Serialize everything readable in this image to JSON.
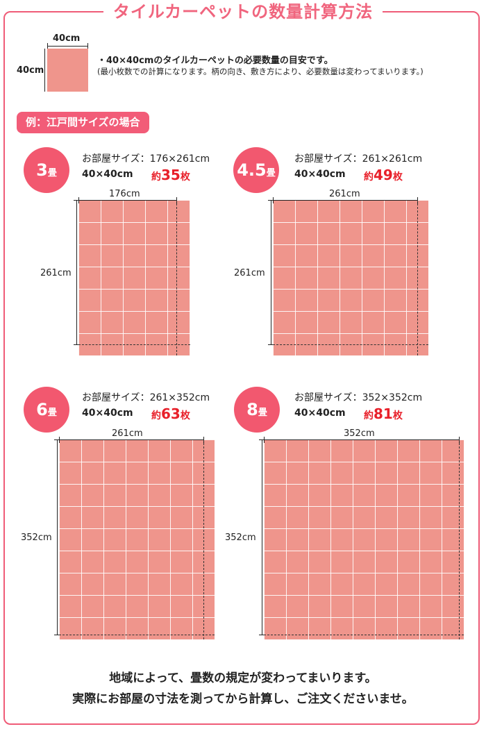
{
  "title": "タイルカーペットの数量計算方法",
  "swatch": {
    "width_label": "40cm",
    "height_label": "40cm"
  },
  "notes": {
    "line1": "・40×40cmのタイルカーペットの必要数量の目安です。",
    "line2": "(最小枚数での計算になります。柄の向き、敷き方により、必要数量は変わってまいります。)"
  },
  "example_label": "例：江戸間サイズの場合",
  "rooms": [
    {
      "num": "3",
      "unit": "畳",
      "room_size": "お部屋サイズ：176×261cm",
      "tile": "40×40cm",
      "approx": "約",
      "count": "35",
      "count_unit": "枚",
      "width_label": "176cm",
      "height_label": "261cm"
    },
    {
      "num": "4.5",
      "unit": "畳",
      "room_size": "お部屋サイズ：261×261cm",
      "tile": "40×40cm",
      "approx": "約",
      "count": "49",
      "count_unit": "枚",
      "width_label": "261cm",
      "height_label": "261cm"
    },
    {
      "num": "6",
      "unit": "畳",
      "room_size": "お部屋サイズ：261×352cm",
      "tile": "40×40cm",
      "approx": "約",
      "count": "63",
      "count_unit": "枚",
      "width_label": "261cm",
      "height_label": "352cm"
    },
    {
      "num": "8",
      "unit": "畳",
      "room_size": "お部屋サイズ：352×352cm",
      "tile": "40×40cm",
      "approx": "約",
      "count": "81",
      "count_unit": "枚",
      "width_label": "352cm",
      "height_label": "352cm"
    }
  ],
  "footer": {
    "line1": "地域によって、畳数の規定が変わってまいります。",
    "line2": "実際にお部屋の寸法を測ってから計算し、ご注文くださいませ。"
  },
  "colors": {
    "accent": "#f25c78",
    "tile": "#ef958c",
    "count": "#e8202a"
  }
}
